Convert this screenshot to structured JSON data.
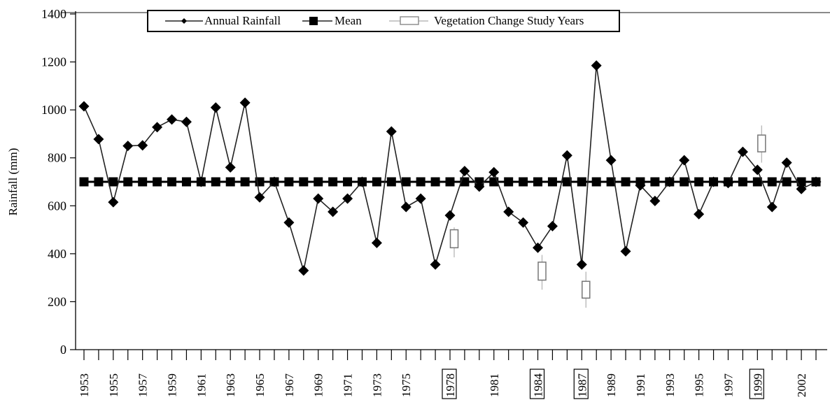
{
  "chart_data": {
    "type": "line",
    "title": "",
    "xlabel": "",
    "ylabel": "Rainfall (mm)",
    "ylim": [
      0,
      1400
    ],
    "yticks": [
      0,
      200,
      400,
      600,
      800,
      1000,
      1200,
      1400
    ],
    "xlim": [
      1953,
      2003
    ],
    "xtick_labels": [
      {
        "year": 1953,
        "label": "1953",
        "boxed": false
      },
      {
        "year": 1955,
        "label": "1955",
        "boxed": false
      },
      {
        "year": 1957,
        "label": "1957",
        "boxed": false
      },
      {
        "year": 1959,
        "label": "1959",
        "boxed": false
      },
      {
        "year": 1961,
        "label": "1961",
        "boxed": false
      },
      {
        "year": 1963,
        "label": "1963",
        "boxed": false
      },
      {
        "year": 1965,
        "label": "1965",
        "boxed": false
      },
      {
        "year": 1967,
        "label": "1967",
        "boxed": false
      },
      {
        "year": 1969,
        "label": "1969",
        "boxed": false
      },
      {
        "year": 1971,
        "label": "1971",
        "boxed": false
      },
      {
        "year": 1973,
        "label": "1973",
        "boxed": false
      },
      {
        "year": 1975,
        "label": "1975",
        "boxed": false
      },
      {
        "year": 1978,
        "label": "1978",
        "boxed": true
      },
      {
        "year": 1981,
        "label": "1981",
        "boxed": false
      },
      {
        "year": 1984,
        "label": "1984",
        "boxed": true
      },
      {
        "year": 1987,
        "label": "1987",
        "boxed": true
      },
      {
        "year": 1989,
        "label": "1989",
        "boxed": false
      },
      {
        "year": 1991,
        "label": "1991",
        "boxed": false
      },
      {
        "year": 1993,
        "label": "1993",
        "boxed": false
      },
      {
        "year": 1995,
        "label": "1995",
        "boxed": false
      },
      {
        "year": 1997,
        "label": "1997",
        "boxed": false
      },
      {
        "year": 1999,
        "label": "1999",
        "boxed": true
      },
      {
        "year": 2002,
        "label": "2002",
        "boxed": false
      }
    ],
    "legend": {
      "placement": "top-center",
      "entries": [
        "Annual Rainfall",
        "Mean",
        "Vegetation Change Study Years"
      ]
    },
    "series": [
      {
        "name": "Annual Rainfall",
        "marker": "diamond",
        "x": [
          1953,
          1954,
          1955,
          1956,
          1957,
          1958,
          1959,
          1960,
          1961,
          1962,
          1963,
          1964,
          1965,
          1966,
          1967,
          1968,
          1969,
          1970,
          1971,
          1972,
          1973,
          1974,
          1975,
          1976,
          1977,
          1978,
          1979,
          1980,
          1981,
          1982,
          1983,
          1984,
          1985,
          1986,
          1987,
          1988,
          1989,
          1990,
          1991,
          1992,
          1993,
          1994,
          1995,
          1996,
          1997,
          1998,
          1999,
          2000,
          2001,
          2002,
          2003
        ],
        "y": [
          1015,
          878,
          615,
          850,
          852,
          928,
          960,
          950,
          700,
          1010,
          760,
          1030,
          635,
          700,
          530,
          330,
          630,
          575,
          630,
          700,
          445,
          910,
          595,
          630,
          355,
          560,
          745,
          680,
          740,
          575,
          530,
          425,
          515,
          810,
          355,
          1185,
          790,
          410,
          685,
          620,
          700,
          790,
          565,
          700,
          695,
          825,
          750,
          595,
          780,
          670,
          700
        ]
      },
      {
        "name": "Mean",
        "marker": "square",
        "value": 700
      },
      {
        "name": "Vegetation Change Study Years",
        "marker": "box",
        "points": [
          {
            "year": 1978,
            "low": 385,
            "q1": 425,
            "q3": 500,
            "high": 510
          },
          {
            "year": 1984,
            "low": 250,
            "q1": 290,
            "q3": 365,
            "high": 395
          },
          {
            "year": 1987,
            "low": 175,
            "q1": 215,
            "q3": 285,
            "high": 325
          },
          {
            "year": 1999,
            "low": 780,
            "q1": 825,
            "q3": 895,
            "high": 935
          }
        ]
      }
    ],
    "grid": false
  }
}
